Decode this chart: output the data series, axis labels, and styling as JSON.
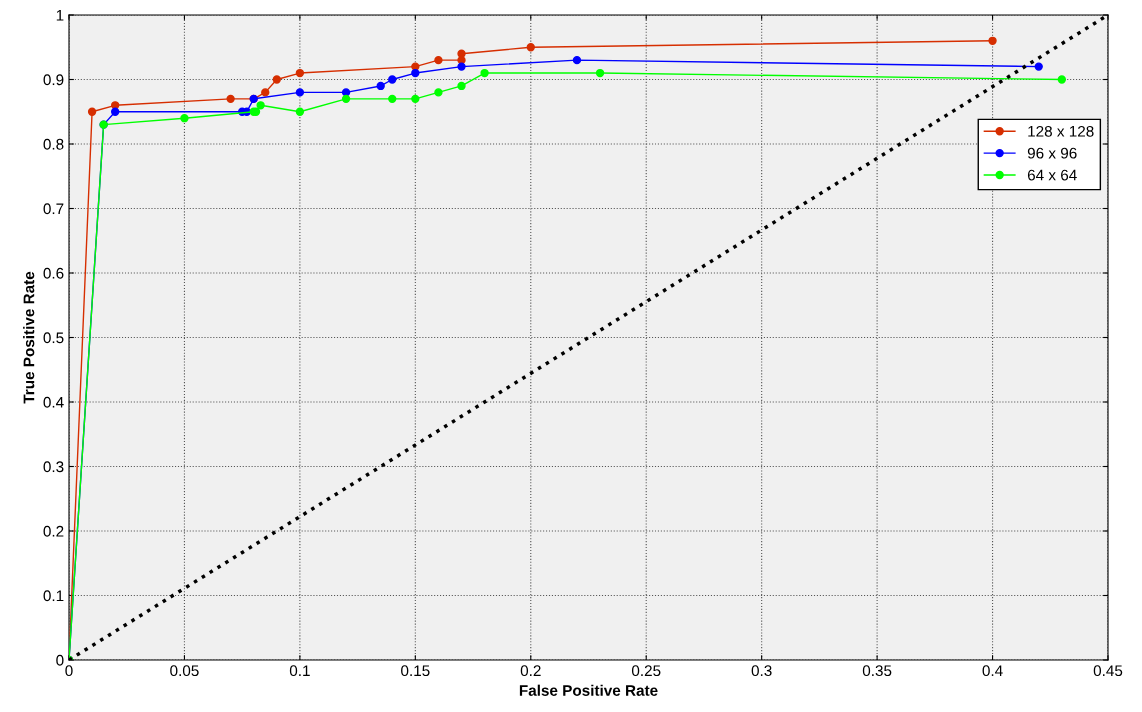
{
  "chart_data": {
    "type": "line",
    "xlabel": "False Positive Rate",
    "ylabel": "True Positive Rate",
    "xlim": [
      0,
      0.45
    ],
    "ylim": [
      0,
      1
    ],
    "xticks": [
      0,
      0.05,
      0.1,
      0.15,
      0.2,
      0.25,
      0.3,
      0.35,
      0.4,
      0.45
    ],
    "yticks": [
      0,
      0.1,
      0.2,
      0.3,
      0.4,
      0.5,
      0.6,
      0.7,
      0.8,
      0.9,
      1
    ],
    "grid": true,
    "legend": "top right",
    "marker": "circle",
    "series": [
      {
        "name": "128 x 128",
        "color": "#d62e00",
        "x": [
          0,
          0.01,
          0.02,
          0.07,
          0.08,
          0.085,
          0.09,
          0.1,
          0.15,
          0.16,
          0.17,
          0.17,
          0.2,
          0.4
        ],
        "values": [
          0,
          0.85,
          0.86,
          0.87,
          0.87,
          0.88,
          0.9,
          0.91,
          0.92,
          0.93,
          0.93,
          0.94,
          0.95,
          0.96
        ]
      },
      {
        "name": "96 x 96",
        "color": "#0000ff",
        "x": [
          0,
          0.015,
          0.02,
          0.075,
          0.077,
          0.08,
          0.1,
          0.12,
          0.135,
          0.14,
          0.15,
          0.17,
          0.22,
          0.42
        ],
        "values": [
          0,
          0.83,
          0.85,
          0.85,
          0.85,
          0.87,
          0.88,
          0.88,
          0.89,
          0.9,
          0.91,
          0.92,
          0.93,
          0.92
        ]
      },
      {
        "name": "64 x 64",
        "color": "#00ff00",
        "x": [
          0,
          0.015,
          0.05,
          0.08,
          0.081,
          0.083,
          0.1,
          0.12,
          0.14,
          0.15,
          0.16,
          0.17,
          0.18,
          0.23,
          0.43
        ],
        "values": [
          0,
          0.83,
          0.84,
          0.85,
          0.85,
          0.86,
          0.85,
          0.87,
          0.87,
          0.87,
          0.88,
          0.89,
          0.91,
          0.91,
          0.9
        ]
      },
      {
        "color": "#000000",
        "marker": "none",
        "line_style": "dotted",
        "x": [
          0,
          0.45
        ],
        "values": [
          0,
          1
        ]
      }
    ]
  }
}
